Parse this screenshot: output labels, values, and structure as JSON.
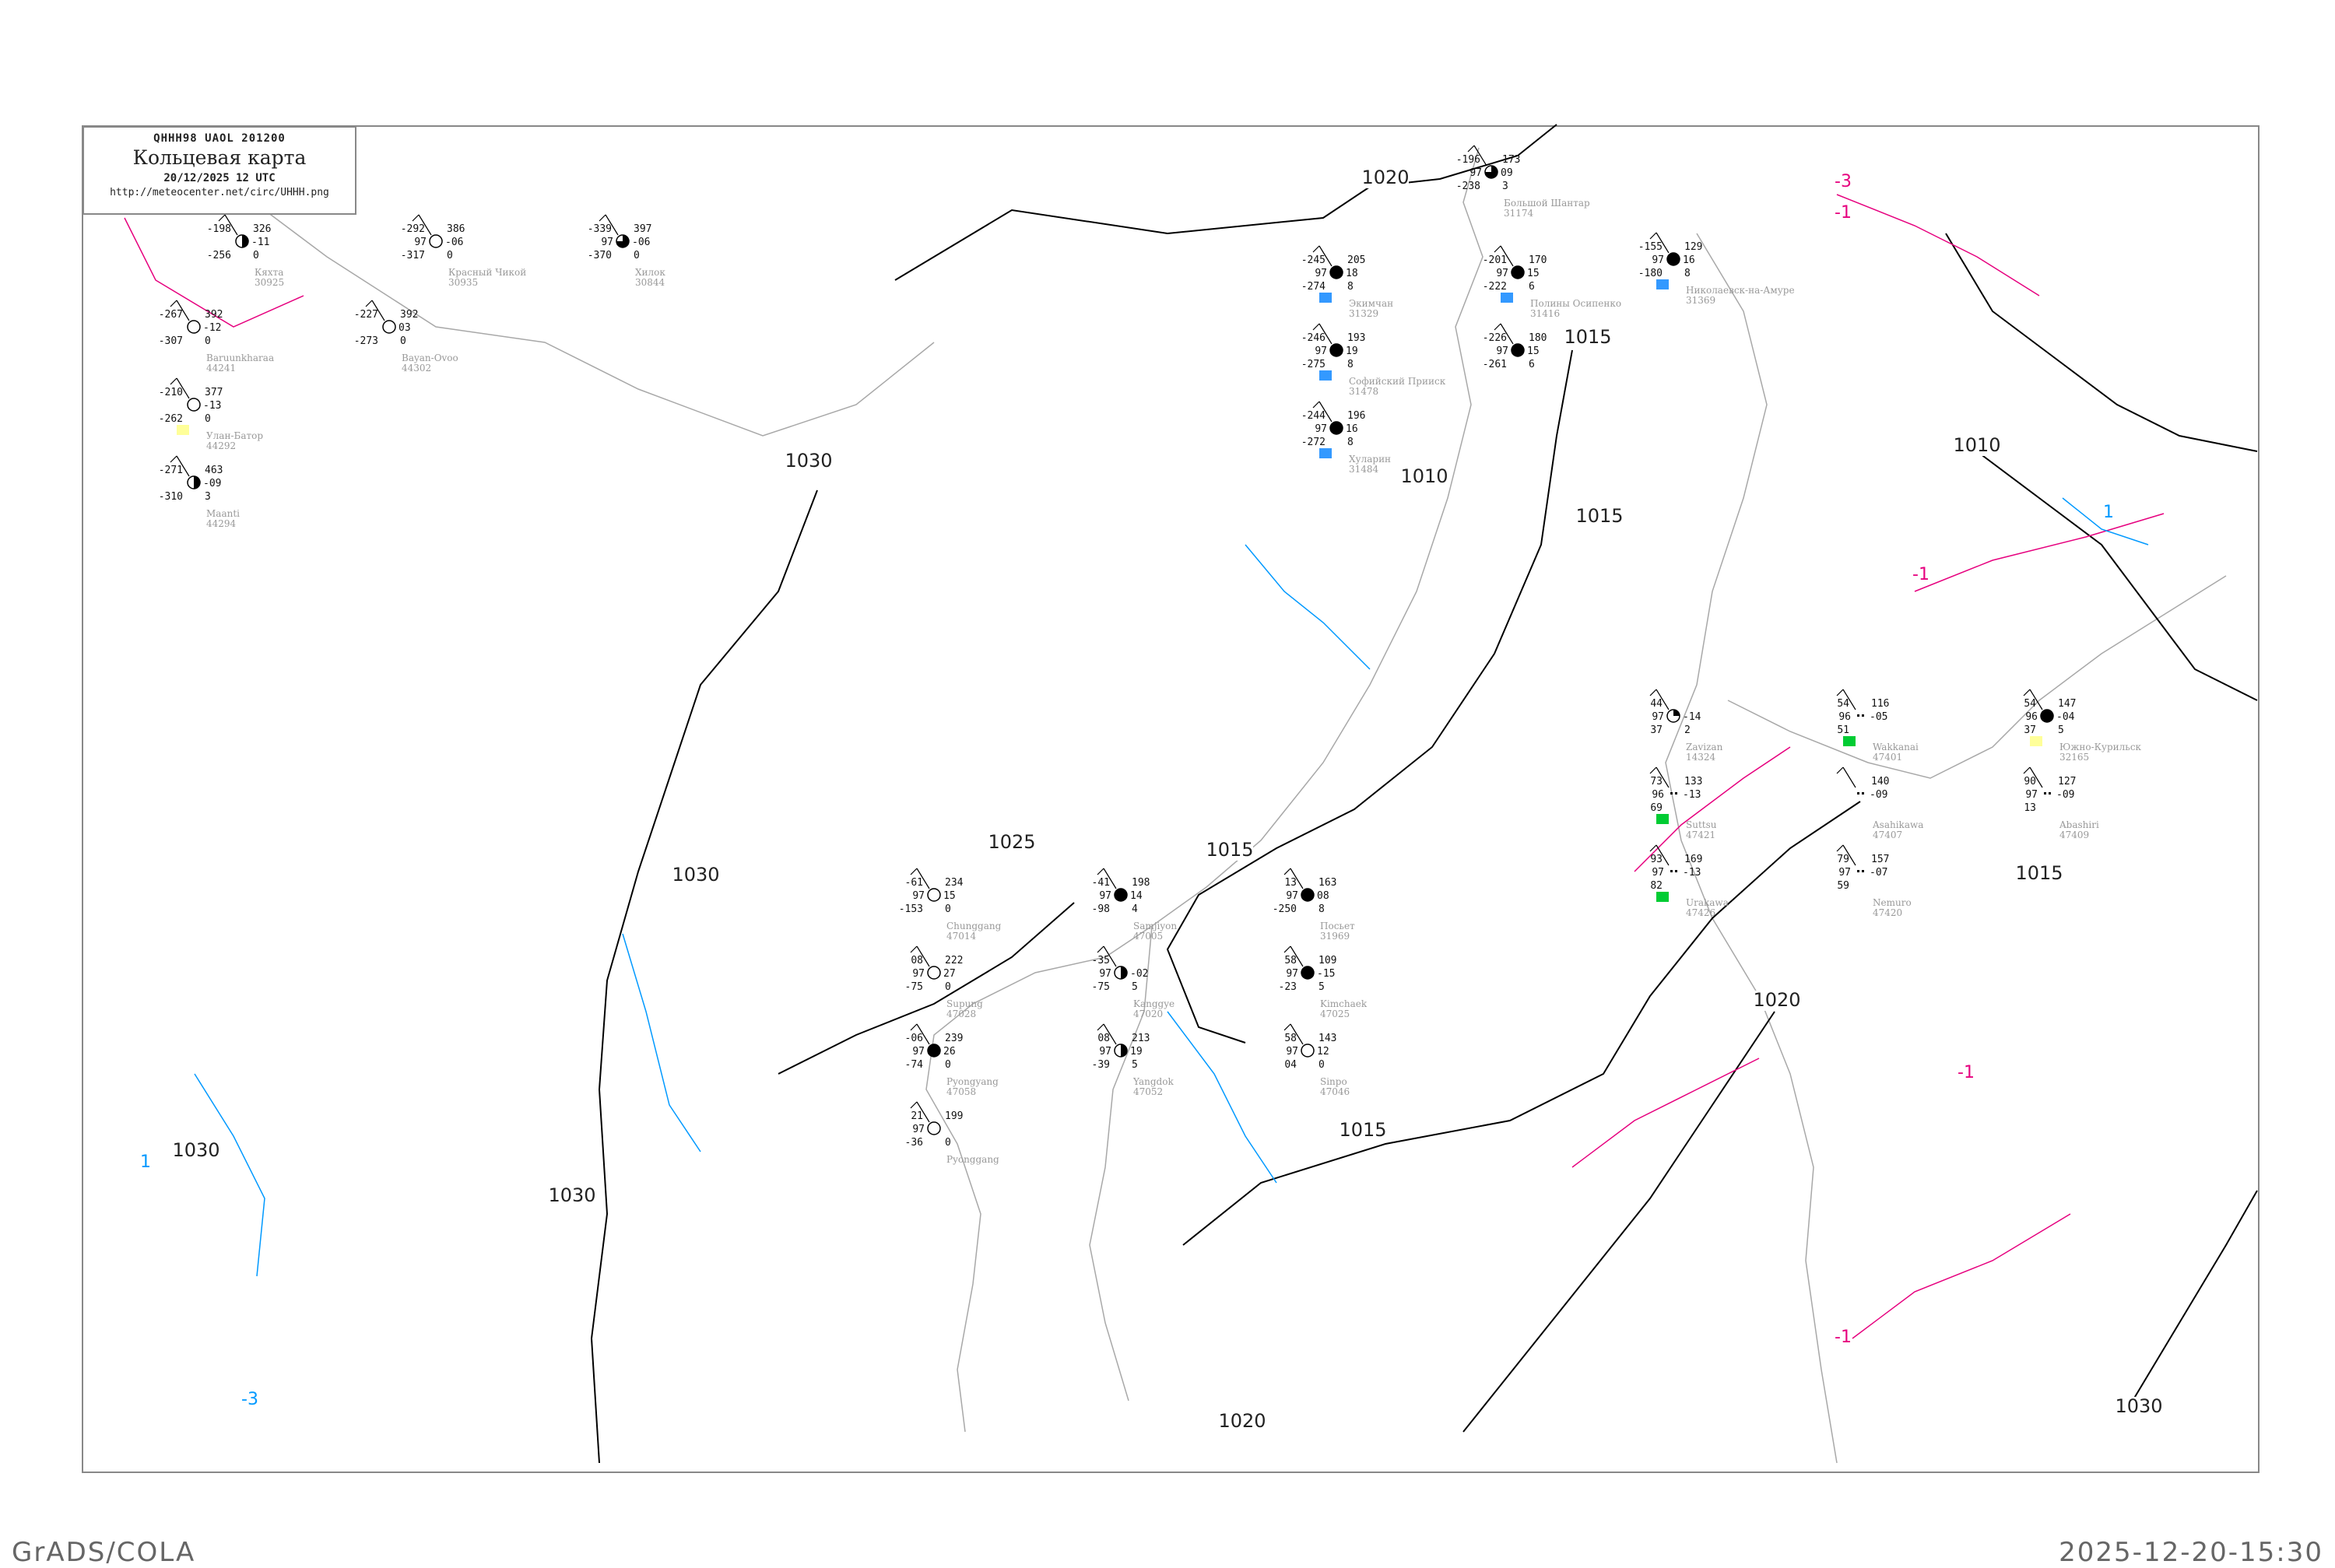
{
  "header": {
    "code": "QHHH98   UAOL   201200",
    "title": "Кольцевая карта",
    "date": "20/12/2025 12 UTC",
    "url": "http://meteocenter.net/circ/UHHH.png"
  },
  "footer": {
    "left": "GrADS/COLA",
    "right": "2025-12-20-15:30"
  },
  "colors": {
    "isobar": "#000000",
    "coastline": "#a0a0a0",
    "isotherm_negative": "#e6007e",
    "isotherm_positive": "#0099ff",
    "snow_marker": "#3399ff",
    "rain_marker": "#00cc33",
    "fog_marker": "#ffff99",
    "station_name": "#999999"
  },
  "isobar_labels": [
    "1020",
    "1015",
    "1015",
    "1010",
    "1030",
    "1030",
    "1025",
    "1015",
    "1015",
    "1020",
    "1020",
    "1030",
    "1030",
    "1030",
    "1015",
    "1010"
  ],
  "isotherm_labels": [
    {
      "text": "-3",
      "sign": "negative"
    },
    {
      "text": "-1",
      "sign": "negative"
    },
    {
      "text": "-1",
      "sign": "negative"
    },
    {
      "text": "-1",
      "sign": "negative"
    },
    {
      "text": "-1",
      "sign": "negative"
    },
    {
      "text": "1",
      "sign": "positive"
    },
    {
      "text": "-3",
      "sign": "positive"
    },
    {
      "text": "1",
      "sign": "positive"
    }
  ],
  "stations": [
    {
      "name": "Кяхта",
      "id": "30925",
      "t": "-198",
      "td": "-256",
      "vis": "",
      "p": "326",
      "dp": "-11",
      "w": "0",
      "cover": "half"
    },
    {
      "name": "Красный Чикой",
      "id": "30935",
      "t": "-292",
      "td": "-317",
      "vis": "97",
      "p": "386",
      "dp": "-06",
      "w": "0",
      "cover": "clear"
    },
    {
      "name": "Хилок",
      "id": "30844",
      "t": "-339",
      "td": "-370",
      "vis": "97",
      "p": "397",
      "dp": "-06",
      "w": "0",
      "cover": "three-quarter"
    },
    {
      "name": "Baruunkharaa",
      "id": "44241",
      "t": "-267",
      "td": "-307",
      "vis": "",
      "p": "392",
      "dp": "-12",
      "w": "0",
      "cover": "clear"
    },
    {
      "name": "Улан-Батор",
      "id": "44292",
      "t": "-210",
      "td": "-262",
      "vis": "",
      "p": "377",
      "dp": "-13",
      "w": "0",
      "cover": "clear",
      "marker": "fog"
    },
    {
      "name": "Maanti",
      "id": "44294",
      "t": "-271",
      "td": "-310",
      "vis": "",
      "p": "463",
      "dp": "-09",
      "w": "3",
      "cover": "half"
    },
    {
      "name": "Bayan-Ovoo",
      "id": "44302",
      "t": "-227",
      "td": "-273",
      "vis": "",
      "p": "392",
      "dp": "03",
      "w": "0",
      "cover": "clear"
    },
    {
      "name": "Большой Шантар",
      "id": "31174",
      "t": "-196",
      "td": "-238",
      "vis": "97",
      "p": "173",
      "dp": "09",
      "w": "3",
      "cover": "three-quarter"
    },
    {
      "name": "Экимчан",
      "id": "31329",
      "t": "-245",
      "td": "-274",
      "vis": "97",
      "p": "205",
      "dp": "18",
      "w": "8",
      "cover": "full",
      "marker": "snow"
    },
    {
      "name": "Софийский Прииск",
      "id": "31478",
      "t": "-246",
      "td": "-275",
      "vis": "97",
      "p": "193",
      "dp": "19",
      "w": "8",
      "cover": "full",
      "marker": "snow"
    },
    {
      "name": "Полины Осипенко",
      "id": "31416",
      "t": "-201",
      "td": "-222",
      "vis": "97",
      "p": "170",
      "dp": "15",
      "w": "6",
      "cover": "full",
      "marker": "snow"
    },
    {
      "name": "Хуларин",
      "id": "31484",
      "t": "-244",
      "td": "-272",
      "vis": "97",
      "p": "196",
      "dp": "16",
      "w": "8",
      "cover": "full",
      "marker": "snow"
    },
    {
      "name": "",
      "id": "",
      "t": "-226",
      "td": "-261",
      "vis": "97",
      "p": "180",
      "dp": "15",
      "w": "6",
      "cover": "full"
    },
    {
      "name": "Николаевск-на-Амуре",
      "id": "31369",
      "t": "-155",
      "td": "-180",
      "vis": "97",
      "p": "129",
      "dp": "16",
      "w": "8",
      "cover": "full",
      "marker": "snow"
    },
    {
      "name": "Chunggang",
      "id": "47014",
      "t": "-61",
      "td": "-153",
      "vis": "97",
      "p": "234",
      "dp": "15",
      "w": "0",
      "cover": "clear"
    },
    {
      "name": "Samjiyon",
      "id": "47005",
      "t": "-41",
      "td": "-98",
      "vis": "97",
      "p": "198",
      "dp": "14",
      "w": "4",
      "cover": "full"
    },
    {
      "name": "Kimchaek",
      "id": "47025",
      "t": "58",
      "td": "-23",
      "vis": "97",
      "p": "109",
      "dp": "-15",
      "w": "5",
      "cover": "full"
    },
    {
      "name": "Supung",
      "id": "47028",
      "t": "08",
      "td": "-75",
      "vis": "97",
      "p": "222",
      "dp": "27",
      "w": "0",
      "cover": "clear"
    },
    {
      "name": "Kanggye",
      "id": "47020",
      "t": "-35",
      "td": "-75",
      "vis": "97",
      "p": "",
      "dp": "-02",
      "w": "5",
      "cover": "half"
    },
    {
      "name": "Sinpo",
      "id": "47046",
      "t": "58",
      "td": "04",
      "vis": "97",
      "p": "143",
      "dp": "12",
      "w": "0",
      "cover": "clear"
    },
    {
      "name": "Yangdok",
      "id": "47052",
      "t": "08",
      "td": "-39",
      "vis": "97",
      "p": "213",
      "dp": "19",
      "w": "5",
      "cover": "half"
    },
    {
      "name": "Pyongyang",
      "id": "47058",
      "t": "-06",
      "td": "-74",
      "vis": "97",
      "p": "239",
      "dp": "26",
      "w": "0",
      "cover": "full"
    },
    {
      "name": "Посьет",
      "id": "31969",
      "t": "13",
      "td": "-250",
      "vis": "97",
      "p": "163",
      "dp": "08",
      "w": "8",
      "cover": "full"
    },
    {
      "name": "Pyonggang",
      "id": "",
      "t": "21",
      "td": "-36",
      "vis": "97",
      "p": "199",
      "dp": "",
      "w": "0",
      "cover": "clear"
    },
    {
      "name": "Zavizan",
      "id": "14324",
      "t": "44",
      "td": "37",
      "vis": "97",
      "p": "",
      "dp": "-14",
      "w": "2",
      "cover": "quarter"
    },
    {
      "name": "Wakkanai",
      "id": "47401",
      "t": "54",
      "td": "51",
      "vis": "96",
      "p": "116",
      "dp": "-05",
      "w": "",
      "cover": "none",
      "marker": "rain"
    },
    {
      "name": "Abashiri",
      "id": "47409",
      "t": "90",
      "td": "13",
      "vis": "97",
      "p": "127",
      "dp": "-09",
      "w": "",
      "cover": "none"
    },
    {
      "name": "Южно-Курильск",
      "id": "32165",
      "t": "54",
      "td": "37",
      "vis": "96",
      "p": "147",
      "dp": "-04",
      "w": "5",
      "cover": "full",
      "marker": "fog"
    },
    {
      "name": "Nemuro",
      "id": "47420",
      "t": "79",
      "td": "59",
      "vis": "97",
      "p": "157",
      "dp": "-07",
      "w": "",
      "cover": "none"
    },
    {
      "name": "Asahikawa",
      "id": "47407",
      "t": "",
      "td": "",
      "vis": "",
      "p": "140",
      "dp": "-09",
      "w": "",
      "cover": "none"
    },
    {
      "name": "Urakawa",
      "id": "47426",
      "t": "93",
      "td": "82",
      "vis": "97",
      "p": "169",
      "dp": "-13",
      "w": "",
      "cover": "none",
      "marker": "rain"
    },
    {
      "name": "Suttsu",
      "id": "47421",
      "t": "73",
      "td": "69",
      "vis": "96",
      "p": "133",
      "dp": "-13",
      "w": "",
      "cover": "none",
      "marker": "rain"
    }
  ]
}
